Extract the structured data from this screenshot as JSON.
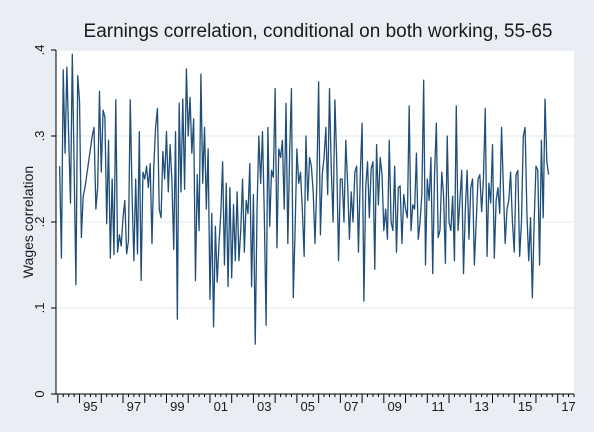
{
  "chart_data": {
    "type": "line",
    "title": "Earnings correlation, conditional on both working, 55-65",
    "xlabel": "",
    "ylabel": "Wages correlation",
    "x_unit": "month",
    "x_start": "1994-02",
    "xlim": [
      "1993-12",
      "2017-10"
    ],
    "ylim": [
      0,
      0.4
    ],
    "y_ticks": [
      {
        "value": 0,
        "label": "0"
      },
      {
        "value": 0.1,
        "label": ".1"
      },
      {
        "value": 0.2,
        "label": ".2"
      },
      {
        "value": 0.3,
        "label": ".3"
      },
      {
        "value": 0.4,
        "label": ".4"
      }
    ],
    "x_ticks": [
      {
        "year": 1995,
        "label": "95"
      },
      {
        "year": 1997,
        "label": "97"
      },
      {
        "year": 1999,
        "label": "99"
      },
      {
        "year": 2001,
        "label": "01"
      },
      {
        "year": 2003,
        "label": "03"
      },
      {
        "year": 2005,
        "label": "05"
      },
      {
        "year": 2007,
        "label": "07"
      },
      {
        "year": 2009,
        "label": "09"
      },
      {
        "year": 2011,
        "label": "11"
      },
      {
        "year": 2013,
        "label": "13"
      },
      {
        "year": 2015,
        "label": "15"
      },
      {
        "year": 2017,
        "label": "17"
      }
    ],
    "grid": true,
    "line_color": "#1f4e79",
    "series": [
      {
        "values": [
          0.265,
          0.158,
          0.377,
          0.28,
          0.38,
          0.3,
          0.222,
          0.395,
          0.265,
          0.127,
          0.37,
          0.34,
          0.182,
          0.23,
          0.24,
          0.255,
          0.27,
          0.285,
          0.3,
          0.31,
          0.215,
          0.24,
          0.352,
          0.258,
          0.33,
          0.322,
          0.198,
          0.295,
          0.158,
          0.25,
          0.162,
          0.342,
          0.165,
          0.185,
          0.172,
          0.205,
          0.225,
          0.163,
          0.178,
          0.342,
          0.232,
          0.155,
          0.25,
          0.163,
          0.305,
          0.132,
          0.258,
          0.25,
          0.265,
          0.24,
          0.268,
          0.175,
          0.265,
          0.31,
          0.332,
          0.215,
          0.205,
          0.282,
          0.25,
          0.305,
          0.235,
          0.29,
          0.248,
          0.168,
          0.305,
          0.087,
          0.338,
          0.235,
          0.343,
          0.238,
          0.378,
          0.3,
          0.345,
          0.28,
          0.32,
          0.132,
          0.255,
          0.19,
          0.372,
          0.245,
          0.31,
          0.215,
          0.285,
          0.11,
          0.21,
          0.078,
          0.195,
          0.13,
          0.175,
          0.21,
          0.27,
          0.15,
          0.245,
          0.125,
          0.24,
          0.135,
          0.22,
          0.155,
          0.235,
          0.155,
          0.19,
          0.25,
          0.165,
          0.225,
          0.21,
          0.268,
          0.125,
          0.232,
          0.058,
          0.215,
          0.3,
          0.245,
          0.305,
          0.21,
          0.08,
          0.31,
          0.195,
          0.26,
          0.252,
          0.355,
          0.17,
          0.285,
          0.275,
          0.295,
          0.215,
          0.338,
          0.175,
          0.28,
          0.355,
          0.112,
          0.19,
          0.285,
          0.245,
          0.258,
          0.215,
          0.16,
          0.3,
          0.225,
          0.275,
          0.265,
          0.235,
          0.175,
          0.245,
          0.363,
          0.185,
          0.255,
          0.275,
          0.31,
          0.232,
          0.355,
          0.26,
          0.2,
          0.342,
          0.27,
          0.155,
          0.25,
          0.25,
          0.2,
          0.295,
          0.245,
          0.18,
          0.235,
          0.2,
          0.258,
          0.265,
          0.165,
          0.255,
          0.315,
          0.108,
          0.24,
          0.27,
          0.205,
          0.262,
          0.27,
          0.145,
          0.29,
          0.22,
          0.275,
          0.255,
          0.19,
          0.215,
          0.18,
          0.295,
          0.2,
          0.19,
          0.265,
          0.165,
          0.24,
          0.242,
          0.175,
          0.232,
          0.215,
          0.205,
          0.335,
          0.19,
          0.22,
          0.215,
          0.28,
          0.18,
          0.2,
          0.232,
          0.365,
          0.15,
          0.25,
          0.225,
          0.275,
          0.14,
          0.255,
          0.315,
          0.182,
          0.19,
          0.258,
          0.23,
          0.152,
          0.3,
          0.2,
          0.19,
          0.23,
          0.155,
          0.335,
          0.19,
          0.225,
          0.26,
          0.14,
          0.215,
          0.26,
          0.18,
          0.24,
          0.25,
          0.15,
          0.2,
          0.25,
          0.255,
          0.212,
          0.25,
          0.332,
          0.16,
          0.245,
          0.222,
          0.29,
          0.158,
          0.225,
          0.24,
          0.21,
          0.31,
          0.24,
          0.175,
          0.215,
          0.225,
          0.258,
          0.2,
          0.165,
          0.255,
          0.26,
          0.16,
          0.2,
          0.3,
          0.31,
          0.21,
          0.155,
          0.205,
          0.112,
          0.2,
          0.265,
          0.26,
          0.15,
          0.295,
          0.205,
          0.343,
          0.27,
          0.255
        ]
      }
    ]
  }
}
